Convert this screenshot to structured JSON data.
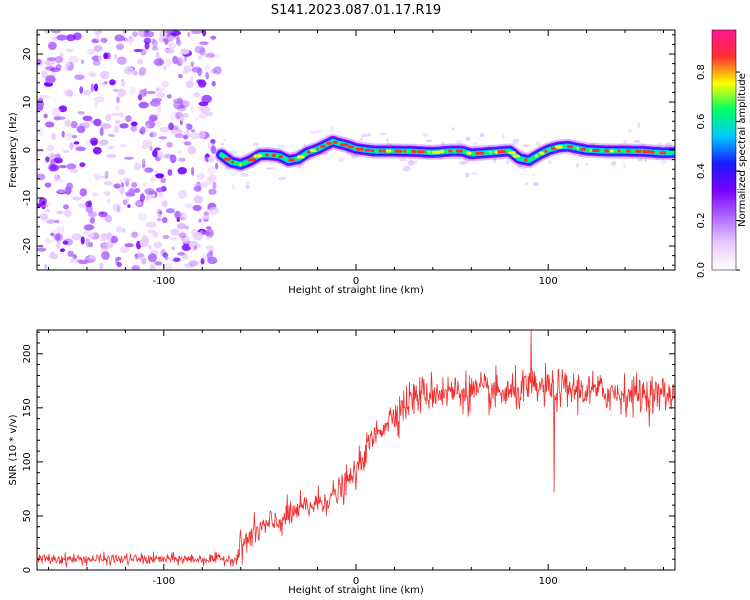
{
  "title": "S141.2023.087.01.17.R19",
  "colors": {
    "spectral_scale": [
      "#ffffff",
      "#e8ccff",
      "#b066ff",
      "#7a00ff",
      "#1a1aff",
      "#00c8ff",
      "#00ff66",
      "#ffff00",
      "#ff3030",
      "#ff1493"
    ],
    "snr_line": "#f03030"
  },
  "chart_data": [
    {
      "type": "heatmap",
      "xlabel": "Height of straight line (km)",
      "ylabel": "Frequency (Hz)",
      "xlim": [
        -166,
        166
      ],
      "ylim": [
        -25,
        25
      ],
      "xticks": [
        -100,
        0,
        100
      ],
      "yticks": [
        -20,
        -10,
        0,
        10,
        20
      ],
      "colorbar": {
        "label": "Normalized spectral amplitude",
        "range": [
          0,
          0.97
        ],
        "ticks": [
          0.0,
          0.2,
          0.4,
          0.6,
          0.8
        ]
      },
      "noise_region_x": [
        -166,
        -72
      ],
      "signal_start_x": -70,
      "signal_track": {
        "x": [
          -70,
          -65,
          -60,
          -55,
          -50,
          -45,
          -40,
          -35,
          -30,
          -25,
          -20,
          -15,
          -12,
          -10,
          -5,
          0,
          5,
          10,
          20,
          30,
          40,
          50,
          55,
          60,
          70,
          80,
          85,
          90,
          95,
          100,
          105,
          110,
          120,
          130,
          140,
          150,
          160,
          166
        ],
        "y": [
          -1.0,
          -2.5,
          -3.0,
          -2.2,
          -1.0,
          -1.0,
          -1.2,
          -2.2,
          -1.8,
          -0.5,
          0.2,
          1.2,
          1.8,
          1.5,
          1.0,
          0.3,
          0.0,
          -0.2,
          -0.2,
          -0.3,
          -0.5,
          -0.2,
          -0.2,
          -0.8,
          -0.5,
          -0.2,
          -1.8,
          -2.2,
          -1.0,
          0.0,
          0.6,
          0.8,
          0.0,
          -0.2,
          -0.2,
          -0.3,
          -0.6,
          -0.5
        ]
      }
    },
    {
      "type": "line",
      "xlabel": "Height of straight line (km)",
      "ylabel": "SNR (10 * v/v)",
      "xlim": [
        -166,
        166
      ],
      "ylim": [
        0,
        222
      ],
      "xticks": [
        -100,
        0,
        100
      ],
      "yticks": [
        0,
        50,
        100,
        150,
        200
      ],
      "series": [
        {
          "x": [
            -166,
            -140,
            -110,
            -80,
            -62,
            -60,
            -55,
            -50,
            -40,
            -30,
            -20,
            -10,
            0,
            5,
            10,
            20,
            30,
            40,
            60,
            80,
            90,
            100,
            120,
            140,
            160,
            166
          ],
          "y": [
            10,
            10,
            10,
            10,
            10,
            22,
            30,
            38,
            45,
            55,
            62,
            70,
            90,
            110,
            125,
            145,
            160,
            165,
            165,
            163,
            168,
            168,
            166,
            163,
            162,
            162
          ]
        }
      ],
      "annotations": [
        {
          "x": 91,
          "y": 222
        },
        {
          "x": 103,
          "y": 72
        }
      ]
    }
  ]
}
